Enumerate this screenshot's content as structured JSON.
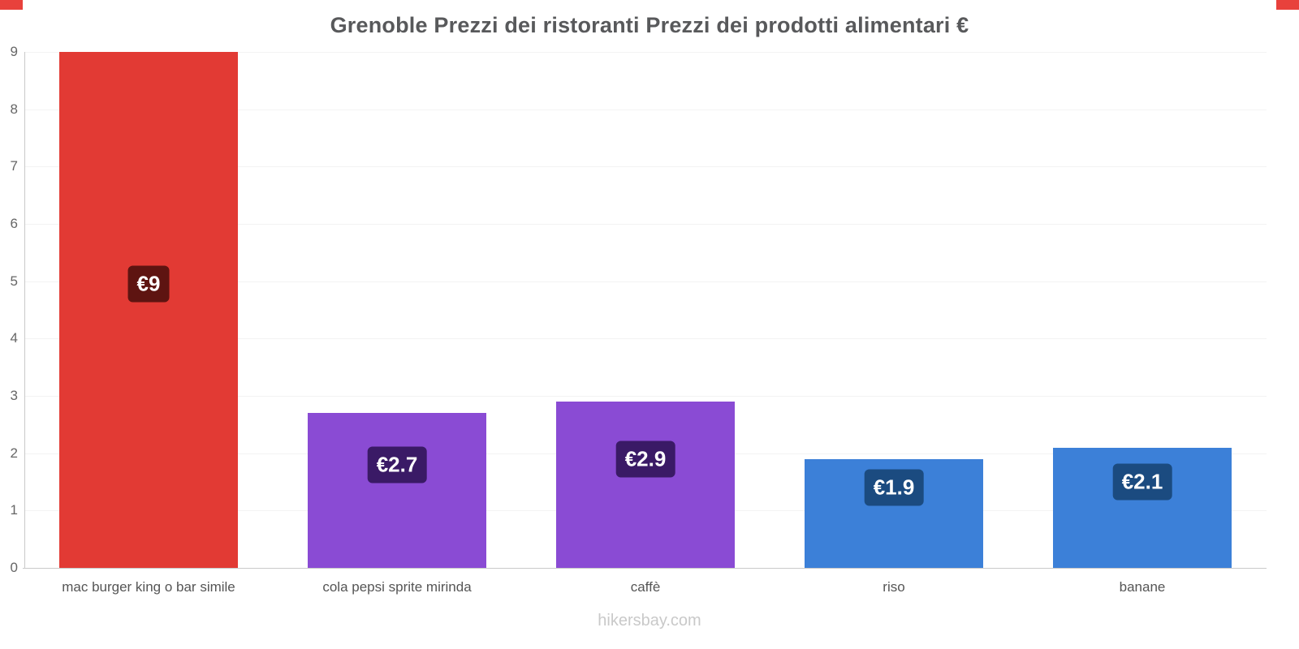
{
  "page": {
    "title": "Grenoble Prezzi dei ristoranti Prezzi dei prodotti alimentari €",
    "footer": "hikersbay.com",
    "accent_color": "#e8413c"
  },
  "chart_data": {
    "type": "bar",
    "title": "Grenoble Prezzi dei ristoranti Prezzi dei prodotti alimentari €",
    "categories": [
      "mac burger king o bar simile",
      "cola pepsi sprite mirinda",
      "caffè",
      "riso",
      "banane"
    ],
    "values": [
      9,
      2.7,
      2.9,
      1.9,
      2.1
    ],
    "value_labels": [
      "€9",
      "€2.7",
      "€2.9",
      "€1.9",
      "€2.1"
    ],
    "bar_colors": [
      "#e23a34",
      "#8a4bd4",
      "#8a4bd4",
      "#3c80d8",
      "#3c80d8"
    ],
    "label_bg_colors": [
      "#5e1411",
      "#3a1a66",
      "#3a1a66",
      "#1b4b80",
      "#1b4b80"
    ],
    "xlabel": "",
    "ylabel": "",
    "ylim": [
      0,
      9
    ],
    "yticks": [
      0,
      1,
      2,
      3,
      4,
      5,
      6,
      7,
      8,
      9
    ],
    "grid": "horizontal-faint",
    "legend": "none",
    "watermark": "hikersbay.com"
  }
}
